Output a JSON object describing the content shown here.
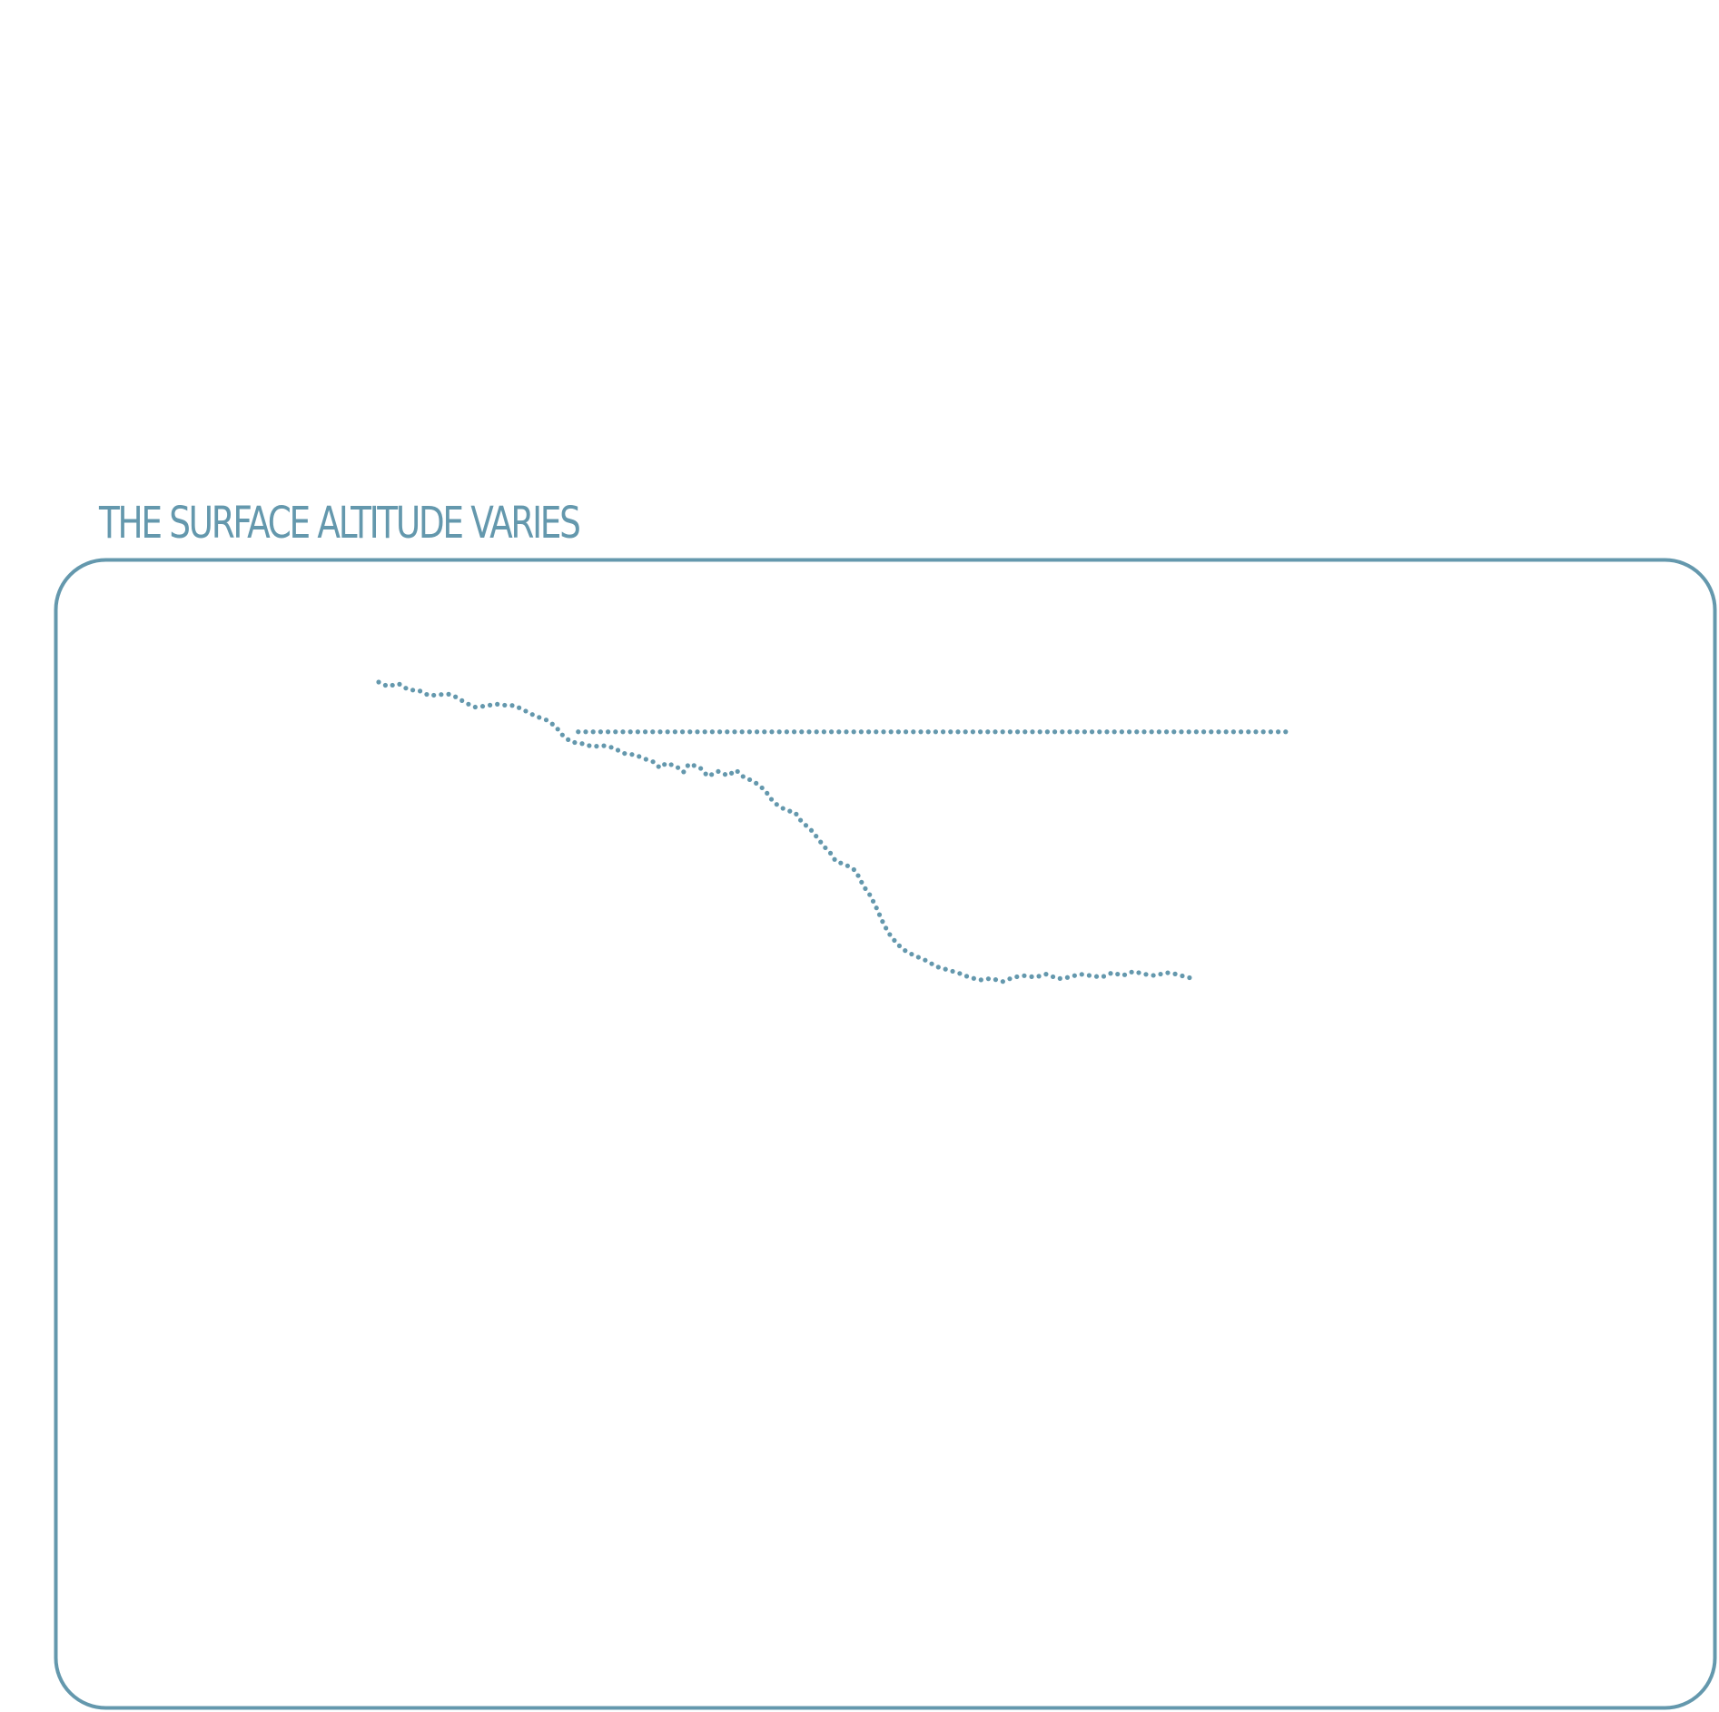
{
  "title": "THE SURFACE ALTITUDE VARIES",
  "colors": {
    "accent": "#6498ad",
    "background": "#ffffff"
  },
  "chart_data": {
    "type": "scatter",
    "title": "THE SURFACE ALTITUDE VARIES",
    "xlabel": "",
    "ylabel": "",
    "xlim": [
      0,
      100
    ],
    "ylim": [
      0,
      100
    ],
    "axes_visible": false,
    "grid": false,
    "series": [
      {
        "values_xy": [
          [
            0.0,
            100.0
          ],
          [
            1.0,
            98.9
          ],
          [
            2.2,
            99.6
          ],
          [
            3.3,
            98.0
          ],
          [
            4.4,
            97.9
          ],
          [
            5.6,
            96.5
          ],
          [
            6.6,
            96.8
          ],
          [
            7.8,
            96.9
          ],
          [
            8.7,
            96.0
          ],
          [
            9.5,
            94.8
          ],
          [
            10.6,
            93.6
          ],
          [
            11.8,
            93.9
          ],
          [
            12.9,
            94.4
          ],
          [
            13.9,
            94.1
          ],
          [
            15.0,
            94.0
          ],
          [
            16.2,
            92.6
          ],
          [
            17.3,
            91.3
          ],
          [
            18.5,
            90.3
          ],
          [
            19.5,
            88.7
          ],
          [
            20.2,
            86.6
          ],
          [
            21.2,
            84.7
          ],
          [
            22.4,
            84.3
          ],
          [
            23.6,
            83.5
          ],
          [
            24.7,
            83.8
          ],
          [
            25.9,
            83.2
          ],
          [
            27.0,
            81.8
          ],
          [
            28.3,
            81.4
          ],
          [
            29.2,
            80.5
          ],
          [
            30.3,
            79.6
          ],
          [
            31.0,
            78.1
          ],
          [
            31.7,
            79.3
          ],
          [
            32.8,
            78.5
          ],
          [
            33.6,
            77.0
          ],
          [
            34.2,
            79.1
          ],
          [
            35.4,
            78.2
          ],
          [
            36.3,
            75.9
          ],
          [
            37.4,
            77.2
          ],
          [
            38.5,
            76.1
          ],
          [
            39.4,
            77.5
          ],
          [
            40.3,
            75.6
          ],
          [
            41.2,
            74.8
          ],
          [
            41.9,
            73.7
          ],
          [
            42.6,
            72.3
          ],
          [
            43.5,
            69.4
          ],
          [
            44.3,
            68.0
          ],
          [
            45.2,
            67.1
          ],
          [
            45.9,
            66.7
          ],
          [
            46.6,
            64.4
          ],
          [
            47.0,
            63.6
          ],
          [
            47.8,
            61.9
          ],
          [
            48.5,
            59.8
          ],
          [
            49.1,
            58.0
          ],
          [
            49.8,
            56.3
          ],
          [
            50.4,
            54.2
          ],
          [
            51.3,
            53.5
          ],
          [
            52.1,
            52.6
          ],
          [
            52.6,
            51.7
          ],
          [
            53.0,
            49.9
          ],
          [
            53.5,
            47.7
          ],
          [
            54.1,
            45.8
          ],
          [
            54.6,
            43.6
          ],
          [
            55.0,
            41.7
          ],
          [
            55.4,
            39.5
          ],
          [
            55.8,
            37.6
          ],
          [
            56.4,
            35.3
          ],
          [
            57.2,
            33.0
          ],
          [
            58.2,
            31.1
          ],
          [
            59.3,
            29.9
          ],
          [
            60.4,
            28.8
          ],
          [
            61.5,
            27.3
          ],
          [
            62.7,
            26.5
          ],
          [
            63.9,
            25.7
          ],
          [
            65.1,
            24.6
          ],
          [
            66.3,
            23.9
          ],
          [
            67.5,
            24.3
          ],
          [
            68.8,
            23.5
          ],
          [
            70.0,
            24.6
          ],
          [
            71.2,
            25.0
          ],
          [
            72.4,
            24.6
          ],
          [
            73.6,
            25.4
          ],
          [
            74.9,
            24.2
          ],
          [
            76.1,
            24.6
          ],
          [
            77.3,
            25.4
          ],
          [
            78.5,
            25.0
          ],
          [
            79.7,
            24.6
          ],
          [
            80.9,
            25.8
          ],
          [
            82.0,
            25.0
          ],
          [
            83.2,
            26.1
          ],
          [
            84.4,
            25.4
          ],
          [
            85.6,
            25.0
          ],
          [
            86.8,
            25.8
          ],
          [
            87.9,
            25.4
          ],
          [
            89.1,
            24.6
          ],
          [
            90.0,
            24.2
          ]
        ]
      },
      {
        "values_xy": [
          [
            22.0,
            87.3
          ],
          [
            28.0,
            87.3
          ],
          [
            34.0,
            87.3
          ],
          [
            40.0,
            87.3
          ],
          [
            46.0,
            87.3
          ],
          [
            52.0,
            87.3
          ],
          [
            58.0,
            87.3
          ],
          [
            64.0,
            87.3
          ],
          [
            70.0,
            87.3
          ],
          [
            76.0,
            87.3
          ],
          [
            82.0,
            87.3
          ],
          [
            88.0,
            87.3
          ],
          [
            94.0,
            87.3
          ],
          [
            100.0,
            87.3
          ]
        ]
      }
    ]
  }
}
